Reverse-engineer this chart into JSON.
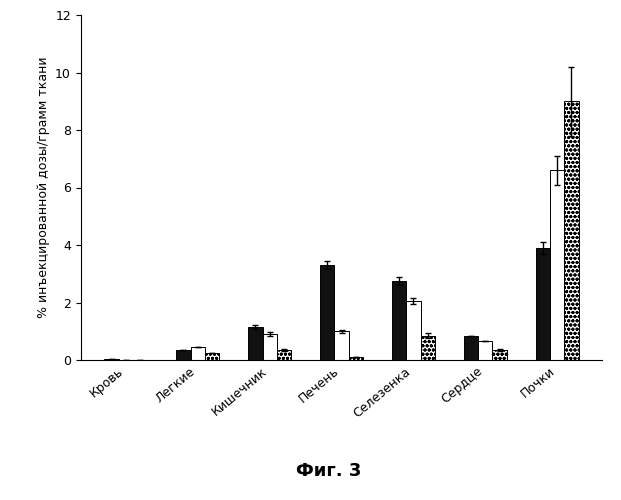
{
  "categories": [
    "Кровь",
    "Легкие",
    "Кишечник",
    "Печень",
    "Селезенка",
    "Сердце",
    "Почки"
  ],
  "series": {
    "black": [
      0.02,
      0.35,
      1.15,
      3.3,
      2.75,
      0.85,
      3.9
    ],
    "white": [
      0.0,
      0.45,
      0.9,
      1.0,
      2.05,
      0.65,
      6.6
    ],
    "dotted": [
      0.0,
      0.25,
      0.35,
      0.1,
      0.85,
      0.35,
      9.0
    ]
  },
  "errors": {
    "black": [
      0.0,
      0.0,
      0.08,
      0.15,
      0.15,
      0.0,
      0.2
    ],
    "white": [
      0.0,
      0.0,
      0.08,
      0.05,
      0.1,
      0.0,
      0.5
    ],
    "dotted": [
      0.0,
      0.0,
      0.05,
      0.0,
      0.1,
      0.05,
      1.2
    ]
  },
  "ylabel": "% инъекцированной дозы/грамм ткани",
  "fig_label": "Фиг. 3",
  "ylim": [
    0,
    12
  ],
  "yticks": [
    0,
    2,
    4,
    6,
    8,
    10,
    12
  ],
  "background_color": "#ffffff",
  "figsize": [
    6.21,
    5.0
  ],
  "dpi": 100,
  "bar_width": 0.2,
  "ylabel_fontsize": 9,
  "tick_fontsize": 9,
  "figlabel_fontsize": 13
}
